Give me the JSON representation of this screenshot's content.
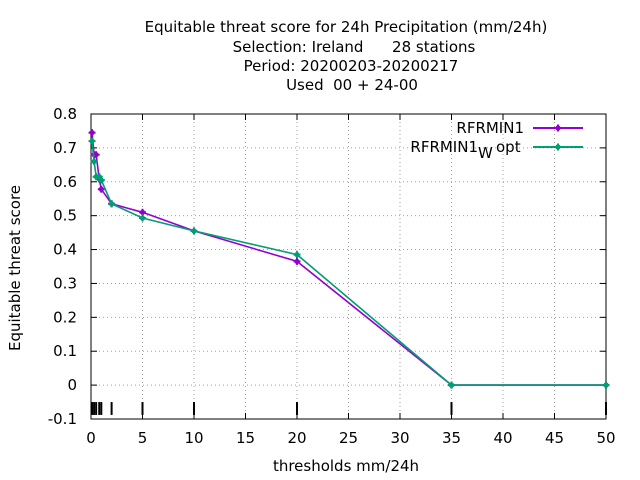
{
  "chart_data": {
    "type": "line",
    "title": [
      "Equitable threat score  for 24h Precipitation (mm/24h)",
      "Selection: Ireland      28 stations",
      "Period: 20200203-20200217",
      "Used  00 + 24-00"
    ],
    "xlabel": "thresholds mm/24h",
    "ylabel": "Equitable threat score",
    "xlim": [
      0,
      50
    ],
    "ylim": [
      -0.1,
      0.8
    ],
    "xticks": [
      0,
      5,
      10,
      15,
      20,
      25,
      30,
      35,
      40,
      45,
      50
    ],
    "yticks": [
      -0.1,
      0,
      0.1,
      0.2,
      0.3,
      0.4,
      0.5,
      0.6,
      0.7,
      0.8
    ],
    "grid": true,
    "legend_position": "top-right",
    "threshold_markers": [
      0.1,
      0.3,
      0.5,
      0.8,
      1,
      2,
      5,
      10,
      20,
      35,
      50
    ],
    "series": [
      {
        "name": "RFRMIN1",
        "color": "#9400d3",
        "marker": "cross",
        "x": [
          0.1,
          0.3,
          0.5,
          0.8,
          1,
          2,
          5,
          10,
          20,
          35,
          50
        ],
        "y": [
          0.745,
          0.68,
          0.68,
          0.608,
          0.578,
          0.535,
          0.51,
          0.455,
          0.365,
          0.0,
          0.0
        ]
      },
      {
        "name": "RFRMIN1_opt",
        "color": "#009e73",
        "marker": "cross",
        "x": [
          0.1,
          0.3,
          0.5,
          0.8,
          1,
          2,
          5,
          10,
          20,
          35,
          50
        ],
        "y": [
          0.72,
          0.66,
          0.615,
          0.615,
          0.605,
          0.535,
          0.493,
          0.455,
          0.385,
          0.0,
          0.0
        ]
      }
    ],
    "legend": [
      {
        "label": "RFRMIN1",
        "color": "#9400d3"
      },
      {
        "label_main": "RFRMIN1",
        "label_sub": "W",
        "label_tail": "opt",
        "color": "#009e73"
      }
    ]
  }
}
